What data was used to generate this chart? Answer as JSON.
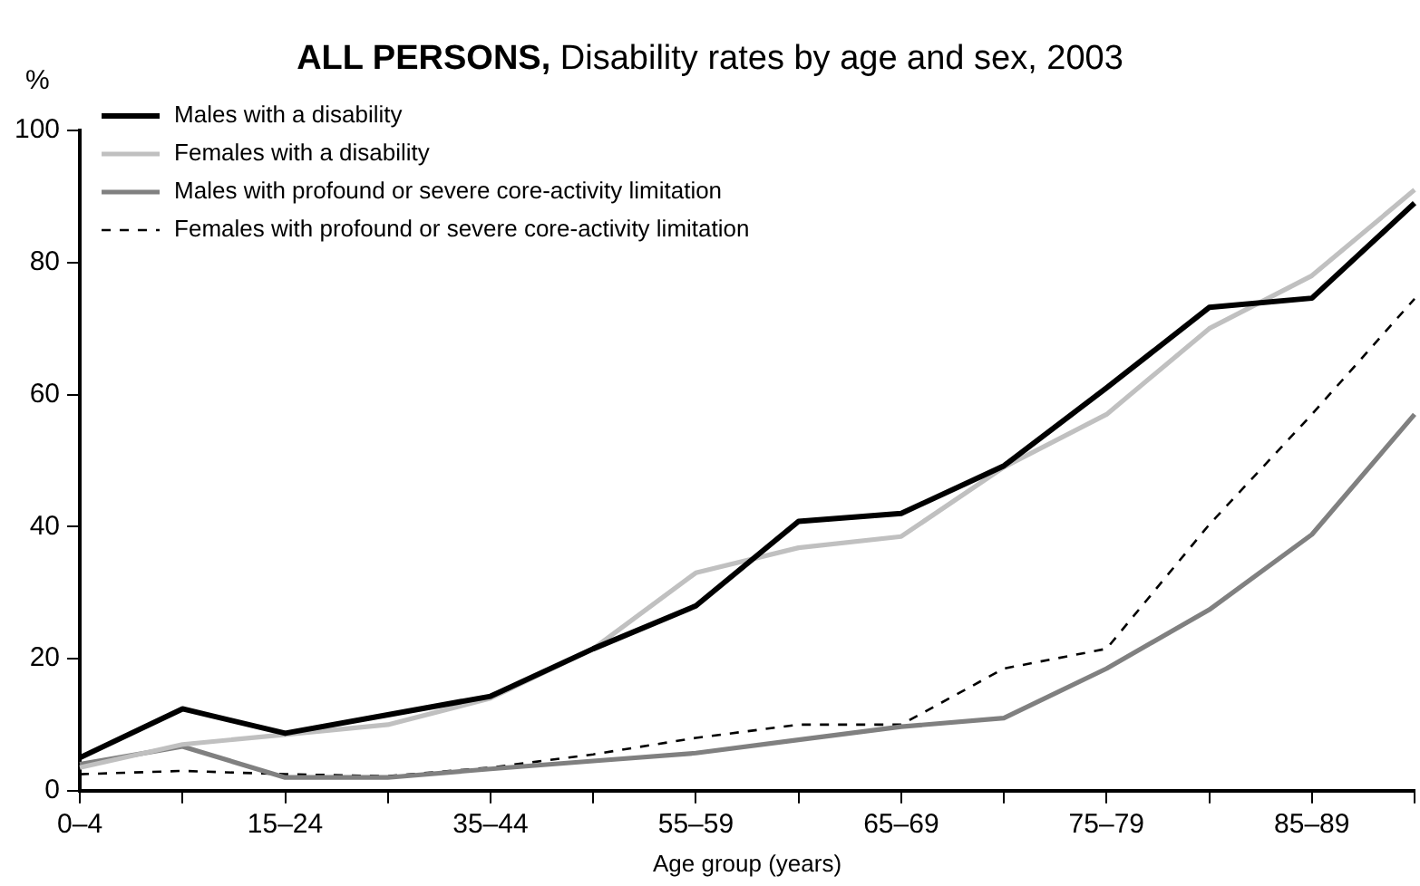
{
  "chart_data": {
    "type": "line",
    "title": "ALL PERSONS, Disability rates by age and sex, 2003",
    "xlabel": "Age group (years)",
    "ylabel": "%",
    "categories": [
      "0–4",
      null,
      "15–24",
      null,
      "35–44",
      null,
      "55–59",
      null,
      "65–69",
      null,
      "75–79",
      null,
      "85–89",
      null
    ],
    "series": [
      {
        "name": "Males with a disability",
        "color": "#000000",
        "line_style": "solid",
        "values": [
          5,
          12.4,
          8.7,
          11.5,
          14.3,
          21.5,
          28,
          40.8,
          42,
          49.2,
          61,
          73.2,
          74.6,
          89
        ]
      },
      {
        "name": "Females with a disability",
        "color": "#c0c0c0",
        "line_style": "solid",
        "values": [
          3.5,
          7,
          8.5,
          10,
          14,
          21.5,
          33,
          36.8,
          38.5,
          49,
          57,
          70,
          78,
          91
        ]
      },
      {
        "name": "Males with profound or severe core-activity limitation",
        "color": "#808080",
        "line_style": "solid",
        "values": [
          4,
          6.7,
          2,
          2,
          3.3,
          4.5,
          5.7,
          7.7,
          9.7,
          11,
          18.5,
          27.4,
          38.8,
          57
        ]
      },
      {
        "name": "Females with profound or severe core-activity limitation",
        "color": "#000000",
        "line_style": "dashed",
        "values": [
          2.5,
          3,
          2.5,
          2.2,
          3.5,
          5.5,
          8,
          10,
          10,
          18.5,
          21.5,
          40.3,
          57,
          74.5
        ]
      }
    ],
    "ylim": [
      0,
      100
    ],
    "yticks": [
      0,
      20,
      40,
      60,
      80,
      100
    ],
    "grid": false,
    "legend": "top left",
    "marker": "none"
  }
}
